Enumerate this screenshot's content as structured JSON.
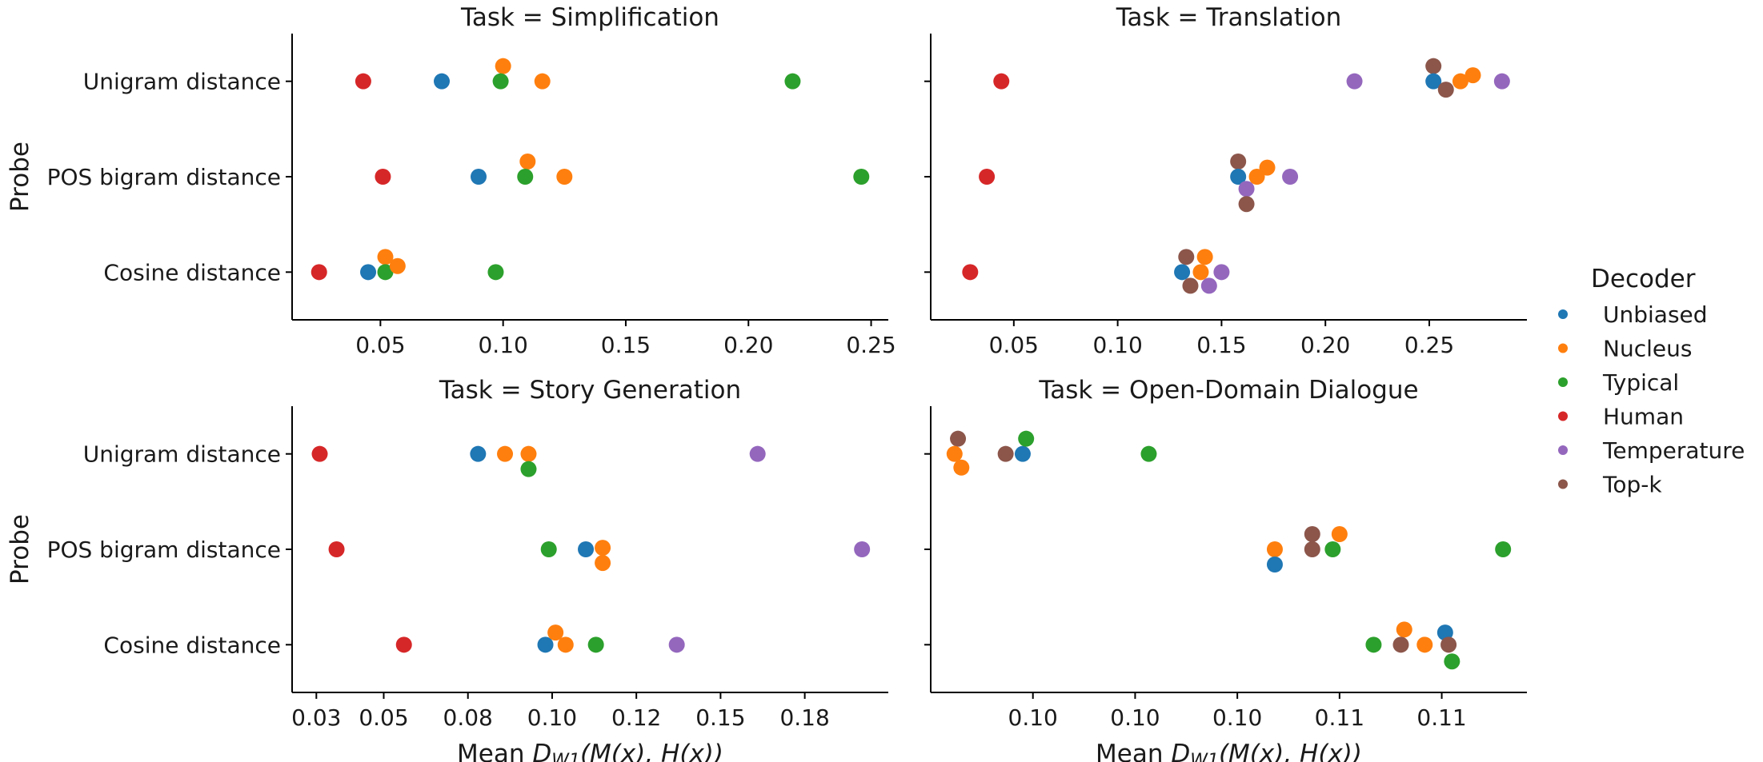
{
  "chart_data": {
    "type": "scatter",
    "y_axis_label": "Probe",
    "x_axis_label": "Mean D_W1(M(x), H(x))",
    "x_axis_label_parts": {
      "prefix": "Mean ",
      "symbol": "D",
      "subscript": "W1",
      "suffix": "(M(x), H(x))"
    },
    "probes": [
      "Unigram distance",
      "POS bigram distance",
      "Cosine distance"
    ],
    "legend": {
      "title": "Decoder",
      "position": "right",
      "entries": [
        {
          "name": "Unbiased",
          "color": "#1f77b4"
        },
        {
          "name": "Nucleus",
          "color": "#ff7f0e"
        },
        {
          "name": "Typical",
          "color": "#2ca02c"
        },
        {
          "name": "Human",
          "color": "#d62728"
        },
        {
          "name": "Temperature",
          "color": "#9467bd"
        },
        {
          "name": "Top-k",
          "color": "#8c564b"
        }
      ]
    },
    "panels": [
      {
        "title": "Task = Simplification",
        "xlim": [
          0.014,
          0.257
        ],
        "xticks": [
          0.05,
          0.1,
          0.15,
          0.2,
          0.25
        ],
        "xtick_labels": [
          "0.05",
          "0.10",
          "0.15",
          "0.20",
          "0.25"
        ],
        "points": [
          {
            "probe": 0,
            "decoder": "Human",
            "x": 0.043,
            "jitter": 0
          },
          {
            "probe": 0,
            "decoder": "Unbiased",
            "x": 0.075,
            "jitter": 0
          },
          {
            "probe": 0,
            "decoder": "Nucleus",
            "x": 0.1,
            "jitter": -1
          },
          {
            "probe": 0,
            "decoder": "Typical",
            "x": 0.099,
            "jitter": 0
          },
          {
            "probe": 0,
            "decoder": "Nucleus",
            "x": 0.116,
            "jitter": 0
          },
          {
            "probe": 0,
            "decoder": "Typical",
            "x": 0.218,
            "jitter": 0
          },
          {
            "probe": 1,
            "decoder": "Human",
            "x": 0.051,
            "jitter": 0
          },
          {
            "probe": 1,
            "decoder": "Unbiased",
            "x": 0.09,
            "jitter": 0
          },
          {
            "probe": 1,
            "decoder": "Nucleus",
            "x": 0.11,
            "jitter": -1
          },
          {
            "probe": 1,
            "decoder": "Typical",
            "x": 0.109,
            "jitter": 0
          },
          {
            "probe": 1,
            "decoder": "Nucleus",
            "x": 0.125,
            "jitter": 0
          },
          {
            "probe": 1,
            "decoder": "Typical",
            "x": 0.246,
            "jitter": 0
          },
          {
            "probe": 2,
            "decoder": "Human",
            "x": 0.025,
            "jitter": 0
          },
          {
            "probe": 2,
            "decoder": "Unbiased",
            "x": 0.045,
            "jitter": 0
          },
          {
            "probe": 2,
            "decoder": "Nucleus",
            "x": 0.052,
            "jitter": -1
          },
          {
            "probe": 2,
            "decoder": "Typical",
            "x": 0.052,
            "jitter": 0
          },
          {
            "probe": 2,
            "decoder": "Nucleus",
            "x": 0.057,
            "jitter": -0.4
          },
          {
            "probe": 2,
            "decoder": "Typical",
            "x": 0.097,
            "jitter": 0
          }
        ]
      },
      {
        "title": "Task = Translation",
        "xlim": [
          0.01,
          0.297
        ],
        "xticks": [
          0.05,
          0.1,
          0.15,
          0.2,
          0.25
        ],
        "xtick_labels": [
          "0.05",
          "0.10",
          "0.15",
          "0.20",
          "0.25"
        ],
        "points": [
          {
            "probe": 0,
            "decoder": "Human",
            "x": 0.044,
            "jitter": 0
          },
          {
            "probe": 0,
            "decoder": "Temperature",
            "x": 0.214,
            "jitter": 0
          },
          {
            "probe": 0,
            "decoder": "Top-k",
            "x": 0.252,
            "jitter": -1
          },
          {
            "probe": 0,
            "decoder": "Unbiased",
            "x": 0.252,
            "jitter": 0
          },
          {
            "probe": 0,
            "decoder": "Top-k",
            "x": 0.258,
            "jitter": 0.55
          },
          {
            "probe": 0,
            "decoder": "Nucleus",
            "x": 0.265,
            "jitter": 0
          },
          {
            "probe": 0,
            "decoder": "Nucleus",
            "x": 0.271,
            "jitter": -0.4
          },
          {
            "probe": 0,
            "decoder": "Temperature",
            "x": 0.285,
            "jitter": 0
          },
          {
            "probe": 1,
            "decoder": "Human",
            "x": 0.037,
            "jitter": 0
          },
          {
            "probe": 1,
            "decoder": "Top-k",
            "x": 0.158,
            "jitter": -1
          },
          {
            "probe": 1,
            "decoder": "Unbiased",
            "x": 0.158,
            "jitter": 0
          },
          {
            "probe": 1,
            "decoder": "Temperature",
            "x": 0.162,
            "jitter": 0.8
          },
          {
            "probe": 1,
            "decoder": "Top-k",
            "x": 0.162,
            "jitter": 1.8
          },
          {
            "probe": 1,
            "decoder": "Nucleus",
            "x": 0.167,
            "jitter": 0
          },
          {
            "probe": 1,
            "decoder": "Nucleus",
            "x": 0.172,
            "jitter": -0.6
          },
          {
            "probe": 1,
            "decoder": "Temperature",
            "x": 0.183,
            "jitter": 0
          },
          {
            "probe": 2,
            "decoder": "Human",
            "x": 0.029,
            "jitter": 0
          },
          {
            "probe": 2,
            "decoder": "Top-k",
            "x": 0.133,
            "jitter": -1
          },
          {
            "probe": 2,
            "decoder": "Unbiased",
            "x": 0.131,
            "jitter": 0
          },
          {
            "probe": 2,
            "decoder": "Top-k",
            "x": 0.135,
            "jitter": 0.9
          },
          {
            "probe": 2,
            "decoder": "Nucleus",
            "x": 0.14,
            "jitter": 0
          },
          {
            "probe": 2,
            "decoder": "Nucleus",
            "x": 0.142,
            "jitter": -1
          },
          {
            "probe": 2,
            "decoder": "Temperature",
            "x": 0.144,
            "jitter": 0.9
          },
          {
            "probe": 2,
            "decoder": "Temperature",
            "x": 0.15,
            "jitter": 0
          }
        ]
      },
      {
        "title": "Task = Story Generation",
        "xlim": [
          0.0228,
          0.1998
        ],
        "xticks": [
          0.03,
          0.05,
          0.075,
          0.1,
          0.125,
          0.15,
          0.175
        ],
        "xtick_labels": [
          "0.03",
          "0.05",
          "0.08",
          "0.10",
          "0.12",
          "0.15",
          "0.18"
        ],
        "points": [
          {
            "probe": 0,
            "decoder": "Human",
            "x": 0.031,
            "jitter": 0
          },
          {
            "probe": 0,
            "decoder": "Unbiased",
            "x": 0.078,
            "jitter": 0
          },
          {
            "probe": 0,
            "decoder": "Nucleus",
            "x": 0.086,
            "jitter": 0
          },
          {
            "probe": 0,
            "decoder": "Nucleus",
            "x": 0.093,
            "jitter": 0
          },
          {
            "probe": 0,
            "decoder": "Typical",
            "x": 0.093,
            "jitter": 1
          },
          {
            "probe": 0,
            "decoder": "Temperature",
            "x": 0.161,
            "jitter": 0
          },
          {
            "probe": 1,
            "decoder": "Human",
            "x": 0.036,
            "jitter": 0
          },
          {
            "probe": 1,
            "decoder": "Typical",
            "x": 0.099,
            "jitter": 0
          },
          {
            "probe": 1,
            "decoder": "Unbiased",
            "x": 0.11,
            "jitter": 0
          },
          {
            "probe": 1,
            "decoder": "Nucleus",
            "x": 0.115,
            "jitter": -0.1
          },
          {
            "probe": 1,
            "decoder": "Nucleus",
            "x": 0.115,
            "jitter": 0.9
          },
          {
            "probe": 1,
            "decoder": "Temperature",
            "x": 0.192,
            "jitter": 0
          },
          {
            "probe": 2,
            "decoder": "Human",
            "x": 0.056,
            "jitter": 0
          },
          {
            "probe": 2,
            "decoder": "Unbiased",
            "x": 0.098,
            "jitter": 0
          },
          {
            "probe": 2,
            "decoder": "Nucleus",
            "x": 0.101,
            "jitter": -0.8
          },
          {
            "probe": 2,
            "decoder": "Nucleus",
            "x": 0.104,
            "jitter": 0
          },
          {
            "probe": 2,
            "decoder": "Typical",
            "x": 0.113,
            "jitter": 0
          },
          {
            "probe": 2,
            "decoder": "Temperature",
            "x": 0.137,
            "jitter": 0
          }
        ]
      },
      {
        "title": "Task = Open-Domain Dialogue",
        "xlim": [
          0.0965,
          0.114
        ],
        "xticks": [
          0.0995,
          0.1025,
          0.1055,
          0.1085,
          0.1115
        ],
        "xtick_labels": [
          "0.10",
          "0.10",
          "0.10",
          "0.11",
          "0.11"
        ],
        "points": [
          {
            "probe": 0,
            "decoder": "Top-k",
            "x": 0.0973,
            "jitter": -1
          },
          {
            "probe": 0,
            "decoder": "Nucleus",
            "x": 0.0972,
            "jitter": 0
          },
          {
            "probe": 0,
            "decoder": "Nucleus",
            "x": 0.0974,
            "jitter": 0.9
          },
          {
            "probe": 0,
            "decoder": "Top-k",
            "x": 0.0987,
            "jitter": 0
          },
          {
            "probe": 0,
            "decoder": "Unbiased",
            "x": 0.0992,
            "jitter": 0
          },
          {
            "probe": 0,
            "decoder": "Typical",
            "x": 0.0993,
            "jitter": -1
          },
          {
            "probe": 0,
            "decoder": "Typical",
            "x": 0.1029,
            "jitter": 0
          },
          {
            "probe": 1,
            "decoder": "Nucleus",
            "x": 0.1066,
            "jitter": 0
          },
          {
            "probe": 1,
            "decoder": "Unbiased",
            "x": 0.1066,
            "jitter": 1
          },
          {
            "probe": 1,
            "decoder": "Top-k",
            "x": 0.1077,
            "jitter": -1
          },
          {
            "probe": 1,
            "decoder": "Top-k",
            "x": 0.1077,
            "jitter": 0
          },
          {
            "probe": 1,
            "decoder": "Typical",
            "x": 0.1083,
            "jitter": 0
          },
          {
            "probe": 1,
            "decoder": "Nucleus",
            "x": 0.1085,
            "jitter": -1
          },
          {
            "probe": 1,
            "decoder": "Typical",
            "x": 0.1133,
            "jitter": 0
          },
          {
            "probe": 2,
            "decoder": "Typical",
            "x": 0.1095,
            "jitter": 0
          },
          {
            "probe": 2,
            "decoder": "Nucleus",
            "x": 0.1104,
            "jitter": -1
          },
          {
            "probe": 2,
            "decoder": "Top-k",
            "x": 0.1103,
            "jitter": 0
          },
          {
            "probe": 2,
            "decoder": "Nucleus",
            "x": 0.111,
            "jitter": 0
          },
          {
            "probe": 2,
            "decoder": "Unbiased",
            "x": 0.1116,
            "jitter": -0.8
          },
          {
            "probe": 2,
            "decoder": "Top-k",
            "x": 0.1117,
            "jitter": 0
          },
          {
            "probe": 2,
            "decoder": "Typical",
            "x": 0.1118,
            "jitter": 1.1
          }
        ]
      }
    ]
  }
}
